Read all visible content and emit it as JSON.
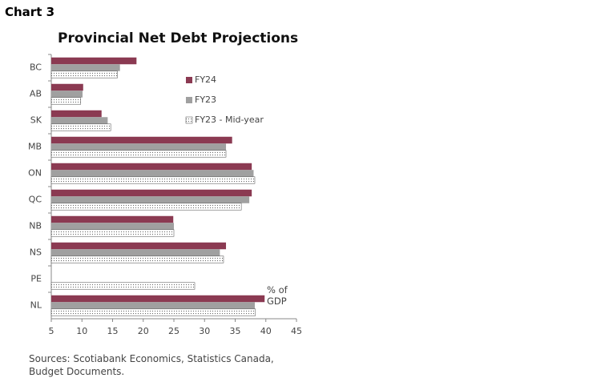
{
  "header": "Chart 3",
  "chart_data": {
    "type": "hbar",
    "title": "Provincial Net Debt Projections",
    "categories": [
      "BC",
      "AB",
      "SK",
      "MB",
      "ON",
      "QC",
      "NB",
      "NS",
      "PE",
      "NL"
    ],
    "series": [
      {
        "name": "FY24",
        "color": "#8b3a52",
        "values": [
          18.9,
          10.2,
          13.2,
          34.5,
          37.7,
          37.7,
          24.9,
          33.5,
          null,
          39.8
        ]
      },
      {
        "name": "FY23",
        "color": "#a0a0a0",
        "values": [
          16.2,
          10.1,
          14.2,
          33.5,
          38.0,
          37.3,
          25.0,
          32.5,
          null,
          38.2
        ]
      },
      {
        "name": "FY23 - Mid-year",
        "color": "#666666",
        "pattern": "dots",
        "values": [
          15.8,
          9.8,
          14.7,
          33.5,
          38.2,
          36.0,
          25.0,
          33.1,
          28.4,
          38.3
        ]
      }
    ],
    "xlim": [
      5,
      45
    ],
    "xticks": [
      5,
      10,
      15,
      20,
      25,
      30,
      35,
      40,
      45
    ],
    "annotation": "% of GDP",
    "source": "Sources: Scotiabank Economics, Statistics Canada, Budget Documents."
  }
}
